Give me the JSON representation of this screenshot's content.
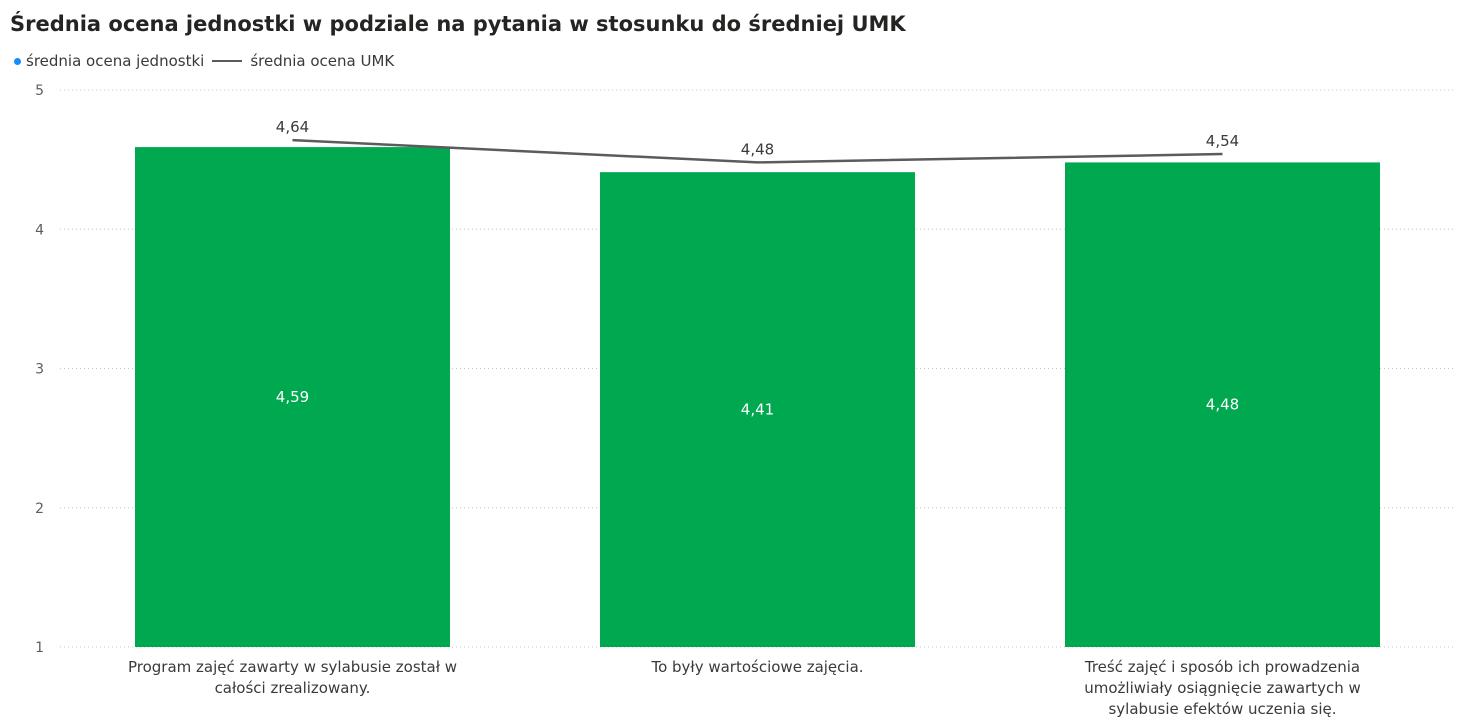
{
  "header": {
    "title": "Średnia ocena jednostki w podziale na pytania w stosunku do średniej UMK"
  },
  "legend": {
    "bar_label": "średnia ocena jednostki",
    "line_label": "średnia ocena UMK"
  },
  "colors": {
    "bar": "#00a84f",
    "line": "#5b5b5b",
    "legend_dot": "#118dff"
  },
  "chart_data": {
    "type": "bar",
    "categories": [
      [
        "Program zajęć zawarty w sylabusie został w",
        "całości zrealizowany."
      ],
      [
        "To były wartościowe zajęcia."
      ],
      [
        "Treść zajęć i sposób ich prowadzenia",
        "umożliwiały osiągnięcie zawartych w",
        "sylabusie efektów uczenia się."
      ]
    ],
    "series": [
      {
        "name": "średnia ocena jednostki",
        "type": "bar",
        "values": [
          4.59,
          4.41,
          4.48
        ],
        "labels": [
          "4,59",
          "4,41",
          "4,48"
        ]
      },
      {
        "name": "średnia ocena UMK",
        "type": "line",
        "values": [
          4.64,
          4.48,
          4.54
        ],
        "labels": [
          "4,64",
          "4,48",
          "4,54"
        ]
      }
    ],
    "ylim": [
      1,
      5
    ],
    "yticks": [
      "1",
      "2",
      "3",
      "4",
      "5"
    ],
    "grid": true,
    "legend_position": "top-left"
  }
}
